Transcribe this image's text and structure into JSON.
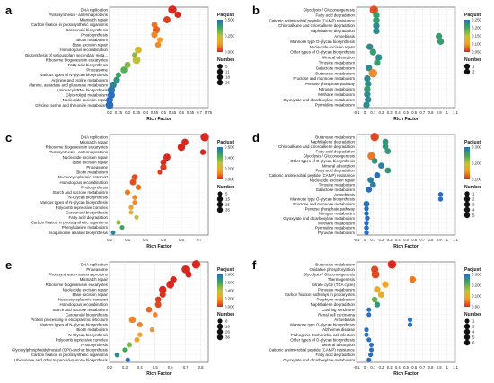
{
  "figure": {
    "xlabel": "Rich Factor",
    "legend_color_title": "Padjust",
    "legend_size_title": "Number",
    "colormap": [
      "#d9271e",
      "#f4a32a",
      "#bfc23a",
      "#3aa85a",
      "#2a6ebc"
    ]
  },
  "chart_data": [
    {
      "panel": "a",
      "type": "scatter",
      "categories": [
        "DNA replication",
        "Photosynthesis - antenna proteins",
        "Mismatch repair",
        "Carbon fixation in photosynthetic organisms",
        "Carotenoid biosynthesis",
        "Photosynthesis",
        "Biotin metabolism",
        "Base excision repair",
        "Homologous recombination",
        "Biosynthesis of various plant secondary meta...",
        "Ribosome biogenesis in eukaryotes",
        "Fatty acid biosynthesis",
        "Proteasome",
        "Various types of N-glycan biosynthesis",
        "Arginine and proline metabolism",
        "Alanine, aspartate and glutamate metabolism",
        "Aminoacyl-tRNA biosynthesis",
        "Glycerolipid metabolism",
        "Nucleotide excision repair",
        "Glycine, serine and threonine metabolism"
      ],
      "x": [
        0.55,
        0.58,
        0.52,
        0.45,
        0.46,
        0.45,
        0.48,
        0.47,
        0.36,
        0.34,
        0.35,
        0.3,
        0.28,
        0.25,
        0.24,
        0.22,
        0.21,
        0.21,
        0.2,
        0.2
      ],
      "padjust": [
        0.0,
        0.0,
        0.02,
        0.08,
        0.06,
        0.1,
        0.12,
        0.1,
        0.2,
        0.3,
        0.25,
        0.3,
        0.35,
        0.38,
        0.42,
        0.45,
        0.48,
        0.5,
        0.5,
        0.5
      ],
      "number": [
        20,
        9,
        12,
        8,
        14,
        10,
        6,
        7,
        12,
        5,
        18,
        9,
        11,
        6,
        10,
        12,
        14,
        13,
        12,
        16
      ],
      "xlim": [
        0.2,
        0.75
      ],
      "xticks": [
        "0.2",
        "0.25",
        "0.3",
        "0.35",
        "0.4",
        "0.45",
        "0.5",
        "0.55",
        "0.6",
        "0.65",
        "0.7",
        "0.75"
      ],
      "color_ticks": [
        "0.500",
        "0.250",
        "0.000"
      ],
      "color_max": 0.5,
      "size_ticks": [
        "5",
        "11",
        "18",
        "26"
      ]
    },
    {
      "panel": "b",
      "type": "scatter",
      "categories": [
        "Glycolysis / Gluconeogenesis",
        "Fatty acid degradation",
        "Cationic antimicrobial peptide (CAMP) resistance",
        "Chloroalkane and chloroalkene degradation",
        "Naphthalene degradation",
        "Amoebiasis",
        "Mannose type O-glycan biosynthesis",
        "Nucleotide excision repair",
        "Other types of O-glycan biosynthesis",
        "Mineral absorption",
        "Tyrosine metabolism",
        "Galactose metabolism",
        "Butanoate metabolism",
        "Fructose and mannose metabolism",
        "Pentose phosphate pathway",
        "Nitrogen metabolism",
        "Methane metabolism",
        "Glyoxylate and dicarboxylate metabolism",
        "Pyrimidine metabolism"
      ],
      "x": [
        0.11,
        0.14,
        0.14,
        0.14,
        0.14,
        0.9,
        0.92,
        0.06,
        0.1,
        0.17,
        0.15,
        0.05,
        0.1,
        0.03,
        0.04,
        0.03,
        0.03,
        0.04,
        0.02
      ],
      "padjust": [
        0.02,
        0.2,
        0.2,
        0.22,
        0.22,
        0.2,
        0.2,
        0.22,
        0.2,
        0.22,
        0.2,
        0.22,
        0.05,
        0.22,
        0.22,
        0.2,
        0.22,
        0.22,
        0.22
      ],
      "number": [
        2,
        1,
        1,
        1,
        1,
        1,
        1,
        1,
        1,
        1,
        1,
        1,
        2,
        1,
        1,
        1,
        1,
        1,
        1
      ],
      "xlim": [
        -0.1,
        1.1
      ],
      "xticks": [
        "-0.1",
        "0",
        "0.1",
        "0.2",
        "0.3",
        "0.4",
        "0.5",
        "0.6",
        "0.7",
        "0.8",
        "0.9",
        "1",
        "1.1"
      ],
      "color_ticks": [
        "0.250",
        "0.200",
        "0.150",
        "0.100",
        "0.050"
      ],
      "color_max": 0.25,
      "size_ticks": [
        "1",
        "2"
      ]
    },
    {
      "panel": "c",
      "type": "scatter",
      "categories": [
        "DNA replication",
        "Mismatch repair",
        "Ribosome biogenesis in eukaryotes",
        "Photosynthesis - antenna proteins",
        "Nucleotide excision repair",
        "Base excision repair",
        "Proteasome",
        "Biotin metabolism",
        "Nucleocytoplasmic transport",
        "Homologous recombination",
        "Photosynthesis",
        "Starch and sucrose metabolism",
        "N-Glycan biosynthesis",
        "Various types of N-glycan biosynthesis",
        "Polycomb repressive complex",
        "Carotenoid biosynthesis",
        "Fatty acid degradation",
        "Carbon fixation in photosynthetic organisms",
        "Phenylalanine metabolism",
        "Isoquinoline alkaloid biosynthesis"
      ],
      "x": [
        0.73,
        0.62,
        0.6,
        0.72,
        0.52,
        0.5,
        0.5,
        0.48,
        0.34,
        0.33,
        0.36,
        0.3,
        0.34,
        0.34,
        0.32,
        0.32,
        0.35,
        0.25,
        0.27,
        0.22
      ],
      "padjust": [
        0.0,
        0.0,
        0.0,
        0.0,
        0.0,
        0.0,
        0.02,
        0.02,
        0.05,
        0.05,
        0.08,
        0.1,
        0.12,
        0.12,
        0.15,
        0.2,
        0.3,
        0.35,
        0.45,
        0.55
      ],
      "number": [
        35,
        20,
        28,
        12,
        22,
        14,
        17,
        6,
        14,
        15,
        11,
        10,
        7,
        6,
        7,
        5,
        5,
        6,
        6,
        5
      ],
      "xlim": [
        0.2,
        0.75
      ],
      "xticks": [
        "0.2",
        "0.3",
        "0.4",
        "0.5",
        "0.6",
        "0.7"
      ],
      "color_ticks": [
        "0.600",
        "0.400",
        "0.200",
        "0.000"
      ],
      "color_max": 0.6,
      "size_ticks": [
        "5",
        "15",
        "25",
        "35"
      ]
    },
    {
      "panel": "d",
      "type": "scatter",
      "categories": [
        "Butanoate metabolism",
        "Naphthalene degradation",
        "Chloroalkane and chloroalkene degradation",
        "Fatty acid degradation",
        "Glycolysis / Gluconeogenesis",
        "Other types of O-glycan biosynthesis",
        "Mineral absorption",
        "Fatty acid degradation",
        "Cationic antimicrobial peptide (CAMP) resistance",
        "Nucleotide excision repair",
        "Tyrosine metabolism",
        "Galactose metabolism",
        "Amoebiasis",
        "Mannose type O-glycan biosynthesis",
        "Fructose and mannose metabolism",
        "Pentose phosphate pathway",
        "Nitrogen metabolism",
        "Glyoxylate and dicarboxylate metabolism",
        "Methane metabolism",
        "Pyrimidine metabolism",
        "Pyruvate metabolism"
      ],
      "x": [
        0.12,
        0.25,
        0.25,
        0.28,
        0.08,
        0.12,
        0.2,
        0.28,
        0.15,
        0.07,
        0.1,
        0.05,
        0.92,
        0.92,
        0.02,
        0.02,
        0.02,
        0.03,
        0.02,
        0.02,
        0.02
      ],
      "padjust": [
        0.02,
        0.25,
        0.25,
        0.25,
        0.05,
        0.25,
        0.28,
        0.25,
        0.3,
        0.28,
        0.28,
        0.3,
        0.3,
        0.3,
        0.3,
        0.3,
        0.3,
        0.3,
        0.3,
        0.3,
        0.3
      ],
      "number": [
        5,
        2,
        2,
        2,
        4,
        2,
        2,
        2,
        2,
        2,
        2,
        2,
        1,
        1,
        2,
        1,
        1,
        1,
        1,
        1,
        1
      ],
      "xlim": [
        -0.1,
        1.1
      ],
      "xticks": [
        "-0.1",
        "0",
        "0.1",
        "0.2",
        "0.3",
        "0.4",
        "0.5",
        "0.6",
        "0.7",
        "0.8",
        "0.9",
        "1",
        "1.1"
      ],
      "color_ticks": [
        "0.300",
        "0.200",
        "0.100"
      ],
      "color_max": 0.3,
      "size_ticks": [
        "1",
        "2",
        "3",
        "4",
        "5"
      ]
    },
    {
      "panel": "e",
      "type": "scatter",
      "categories": [
        "DNA replication",
        "Proteasome",
        "Photosynthesis - antenna proteins",
        "Mismatch repair",
        "Ribosome biogenesis in eukaryotes",
        "Nucleotide excision repair",
        "Base excision repair",
        "Nucleocytoplasmic transport",
        "Homologous recombination",
        "Starch and sucrose metabolism",
        "Carotenoid biosynthesis",
        "Protein processing in endoplasmic reticulum",
        "Various types of N-glycan biosynthesis",
        "Biotin metabolism",
        "N-Glycan biosynthesis",
        "Polycomb repressive complex",
        "Photosynthesis",
        "Glycosylphosphatidylinositol (GPI)-anchor biosynthesis",
        "Carbon fixation in photosynthetic organisms",
        "Ubiquinone and other terpenoid-quinone biosynthesis"
      ],
      "x": [
        0.77,
        0.7,
        0.72,
        0.62,
        0.6,
        0.55,
        0.55,
        0.52,
        0.52,
        0.46,
        0.5,
        0.35,
        0.4,
        0.48,
        0.4,
        0.38,
        0.33,
        0.3,
        0.25,
        0.32
      ],
      "padjust": [
        0.0,
        0.0,
        0.0,
        0.0,
        0.0,
        0.0,
        0.02,
        0.03,
        0.05,
        0.1,
        0.15,
        0.15,
        0.15,
        0.18,
        0.2,
        0.2,
        0.5,
        0.6,
        0.7,
        0.8
      ],
      "number": [
        36,
        30,
        16,
        18,
        30,
        25,
        17,
        14,
        16,
        14,
        8,
        20,
        10,
        7,
        8,
        9,
        10,
        6,
        8,
        6
      ],
      "xlim": [
        0.2,
        0.85
      ],
      "xticks": [
        "0.2",
        "0.3",
        "0.4",
        "0.5",
        "0.6",
        "0.7",
        "0.8"
      ],
      "color_ticks": [
        "0.800",
        "0.600",
        "0.400",
        "0.200",
        "0.000"
      ],
      "color_max": 0.8,
      "size_ticks": [
        "6",
        "16",
        "26",
        "36"
      ]
    },
    {
      "panel": "f",
      "type": "scatter",
      "categories": [
        "Butanoate metabolism",
        "Oxidative phosphorylation",
        "Glycolysis / Gluconeogenesis",
        "Thermogenesis",
        "Citrate cycle (TCA cycle)",
        "Pyruvate metabolism",
        "Carbon fixation pathways in prokaryotes",
        "Porphyrin metabolism",
        "Naphthalene degradation",
        "Cushing syndrome",
        "Renal cell carcinoma",
        "Amoebiasis",
        "Mannose type O-glycan biosynthesis",
        "Alzheimer disease",
        "Pathogenic Escherichia coli infection",
        "Other types of O-glycan biosynthesis",
        "Mineral absorption",
        "Cationic antimicrobial peptide (CAMP) resistance",
        "Fatty acid degradation",
        "Glyoxylate and dicarboxylate metabolism"
      ],
      "x": [
        0.33,
        0.12,
        0.13,
        0.58,
        0.25,
        0.15,
        0.2,
        0.12,
        0.15,
        0.05,
        0.05,
        0.55,
        0.55,
        0.02,
        0.02,
        0.05,
        0.08,
        0.08,
        0.07,
        0.05
      ],
      "padjust": [
        0.0,
        0.02,
        0.02,
        0.05,
        0.08,
        0.1,
        0.1,
        0.2,
        0.25,
        0.3,
        0.3,
        0.3,
        0.3,
        0.3,
        0.3,
        0.3,
        0.3,
        0.3,
        0.3,
        0.3
      ],
      "number": [
        6,
        4,
        5,
        3,
        3,
        3,
        3,
        2,
        2,
        1,
        1,
        1,
        1,
        1,
        1,
        1,
        1,
        1,
        1,
        1
      ],
      "xlim": [
        -0.1,
        1.1
      ],
      "xticks": [
        "-0.1",
        "0",
        "0.1",
        "0.2",
        "0.3",
        "0.4",
        "0.5",
        "0.6",
        "0.7",
        "0.8",
        "0.9",
        "1",
        "1.1"
      ],
      "color_ticks": [
        "0.300",
        "0.200",
        "0.100",
        "0.00"
      ],
      "color_max": 0.3,
      "size_ticks": [
        "1",
        "3",
        "4",
        "5",
        "6"
      ]
    }
  ]
}
